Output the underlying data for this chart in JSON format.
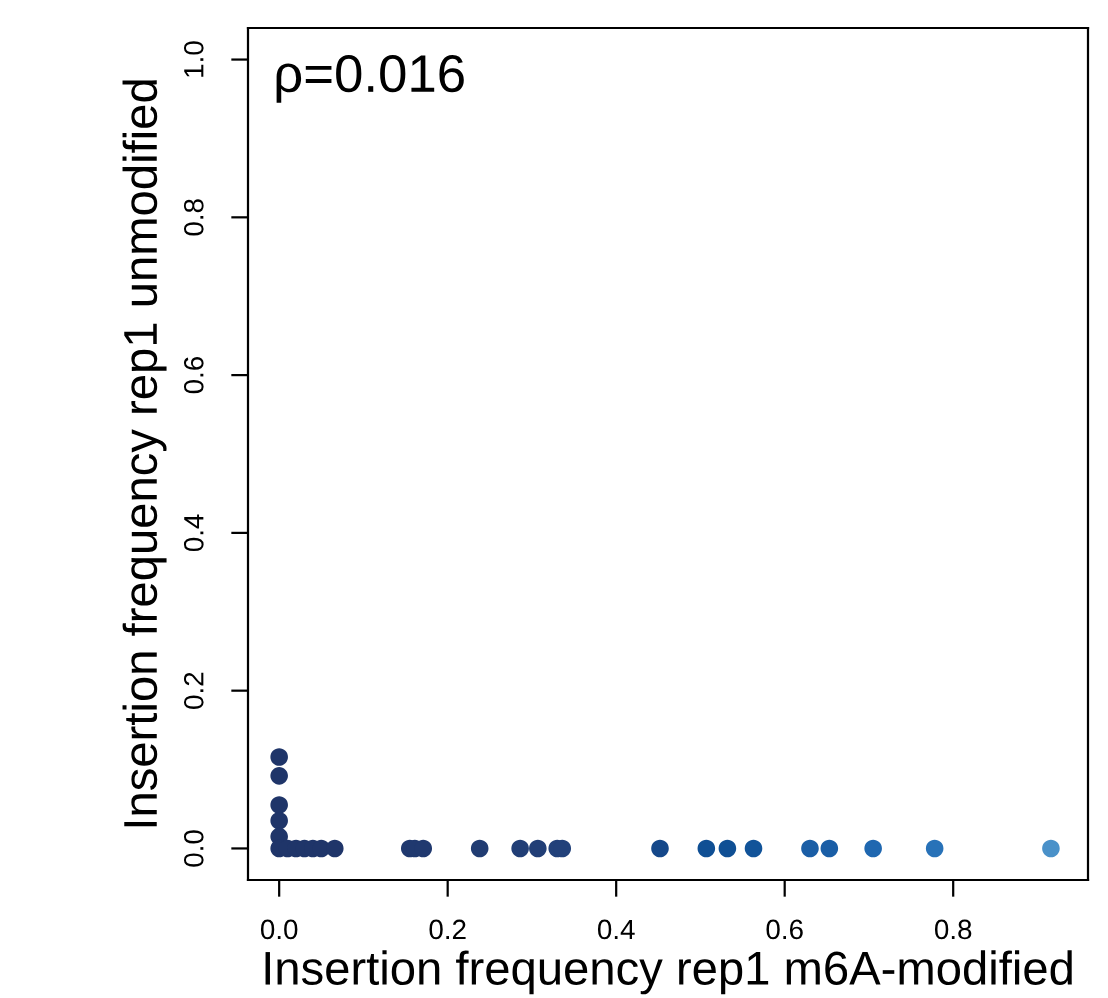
{
  "chart_data": {
    "type": "scatter",
    "xlabel": "Insertion frequency rep1 m6A-modified",
    "ylabel": "Insertion frequency rep1 unmodified",
    "annotations": [
      "ρ=0.016"
    ],
    "x": [
      0,
      0,
      0,
      0,
      0,
      0,
      0.01,
      0.02,
      0.03,
      0.04,
      0.05,
      0.066,
      0.155,
      0.161,
      0.171,
      0.238,
      0.286,
      0.307,
      0.33,
      0.336,
      0.452,
      0.507,
      0.532,
      0.563,
      0.63,
      0.653,
      0.705,
      0.778,
      0.916
    ],
    "values": [
      0.116,
      0.092,
      0.055,
      0.035,
      0.015,
      0,
      0,
      0,
      0,
      0,
      0,
      0,
      0,
      0,
      0,
      0,
      0,
      0,
      0,
      0,
      0,
      0,
      0,
      0,
      0,
      0,
      0,
      0,
      0
    ],
    "colors": [
      "#1f3569",
      "#1f3569",
      "#1f3569",
      "#1f3569",
      "#1f3569",
      "#1f3569",
      "#1f3569",
      "#1f3569",
      "#1f3569",
      "#1f3569",
      "#1f3569",
      "#1f3569",
      "#20396f",
      "#20396f",
      "#20396f",
      "#213c72",
      "#213e76",
      "#213e76",
      "#22417a",
      "#22417a",
      "#15488a",
      "#0f4f94",
      "#0f4f94",
      "#115399",
      "#1a5ea6",
      "#1a5ea6",
      "#1f67b0",
      "#2872b8",
      "#4a91c9"
    ],
    "marker": "circle",
    "xlim": [
      -0.037,
      0.96
    ],
    "ylim": [
      -0.04,
      1.04
    ],
    "xticks": [
      {
        "value": 0,
        "label": "0.0"
      },
      0.2,
      0.4,
      0.6,
      0.8
    ],
    "yticks": [
      {
        "value": 0,
        "label": "0.0"
      },
      0.2,
      0.4,
      0.6,
      0.8,
      {
        "value": 1,
        "label": "1.0"
      }
    ],
    "grid": false
  }
}
